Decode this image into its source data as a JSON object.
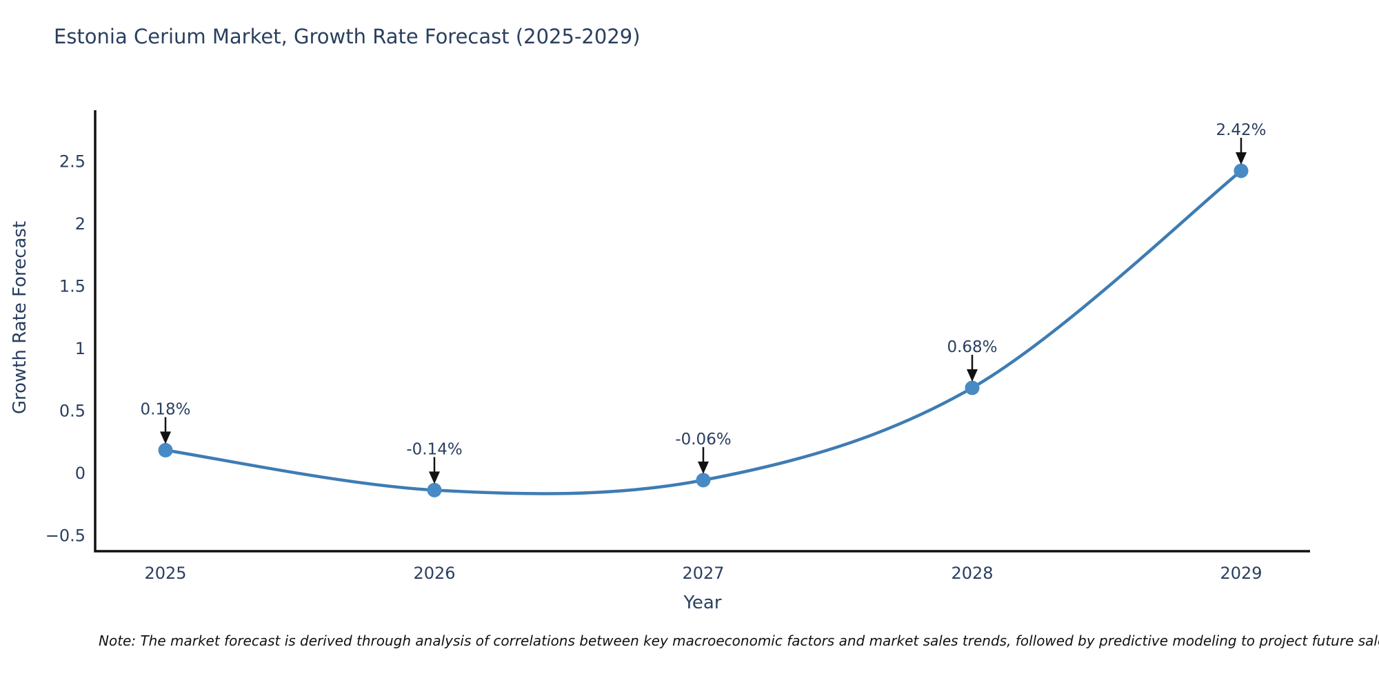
{
  "chart_data": {
    "type": "line",
    "title": "Estonia Cerium Market, Growth Rate Forecast (2025-2029)",
    "xlabel": "Year",
    "ylabel": "Growth Rate Forecast",
    "x": [
      2025,
      2026,
      2027,
      2028,
      2029
    ],
    "y": [
      0.18,
      -0.14,
      -0.06,
      0.68,
      2.42
    ],
    "point_labels": [
      "0.18%",
      "-0.14%",
      "-0.06%",
      "0.68%",
      "2.42%"
    ],
    "x_tick_labels": [
      "2025",
      "2026",
      "2027",
      "2028",
      "2029"
    ],
    "y_tick_values": [
      2.5,
      2,
      1.5,
      1,
      0.5,
      0,
      -0.5
    ],
    "y_tick_labels": [
      "2.5",
      "2",
      "1.5",
      "1",
      "0.5",
      "0",
      "−0.5"
    ],
    "ylim": [
      -0.64,
      2.9
    ],
    "grid": false,
    "legend": "none",
    "line_color": "#3e7cb3",
    "marker_color": "#488ac4",
    "axis_color": "#111111",
    "text_color": "#2a3f5f",
    "annotation_arrow_color": "#111111",
    "note": "Note: The market forecast is derived through analysis of correlations between key macroeconomic factors and market sales trends, followed by predictive modeling to project future sales."
  }
}
